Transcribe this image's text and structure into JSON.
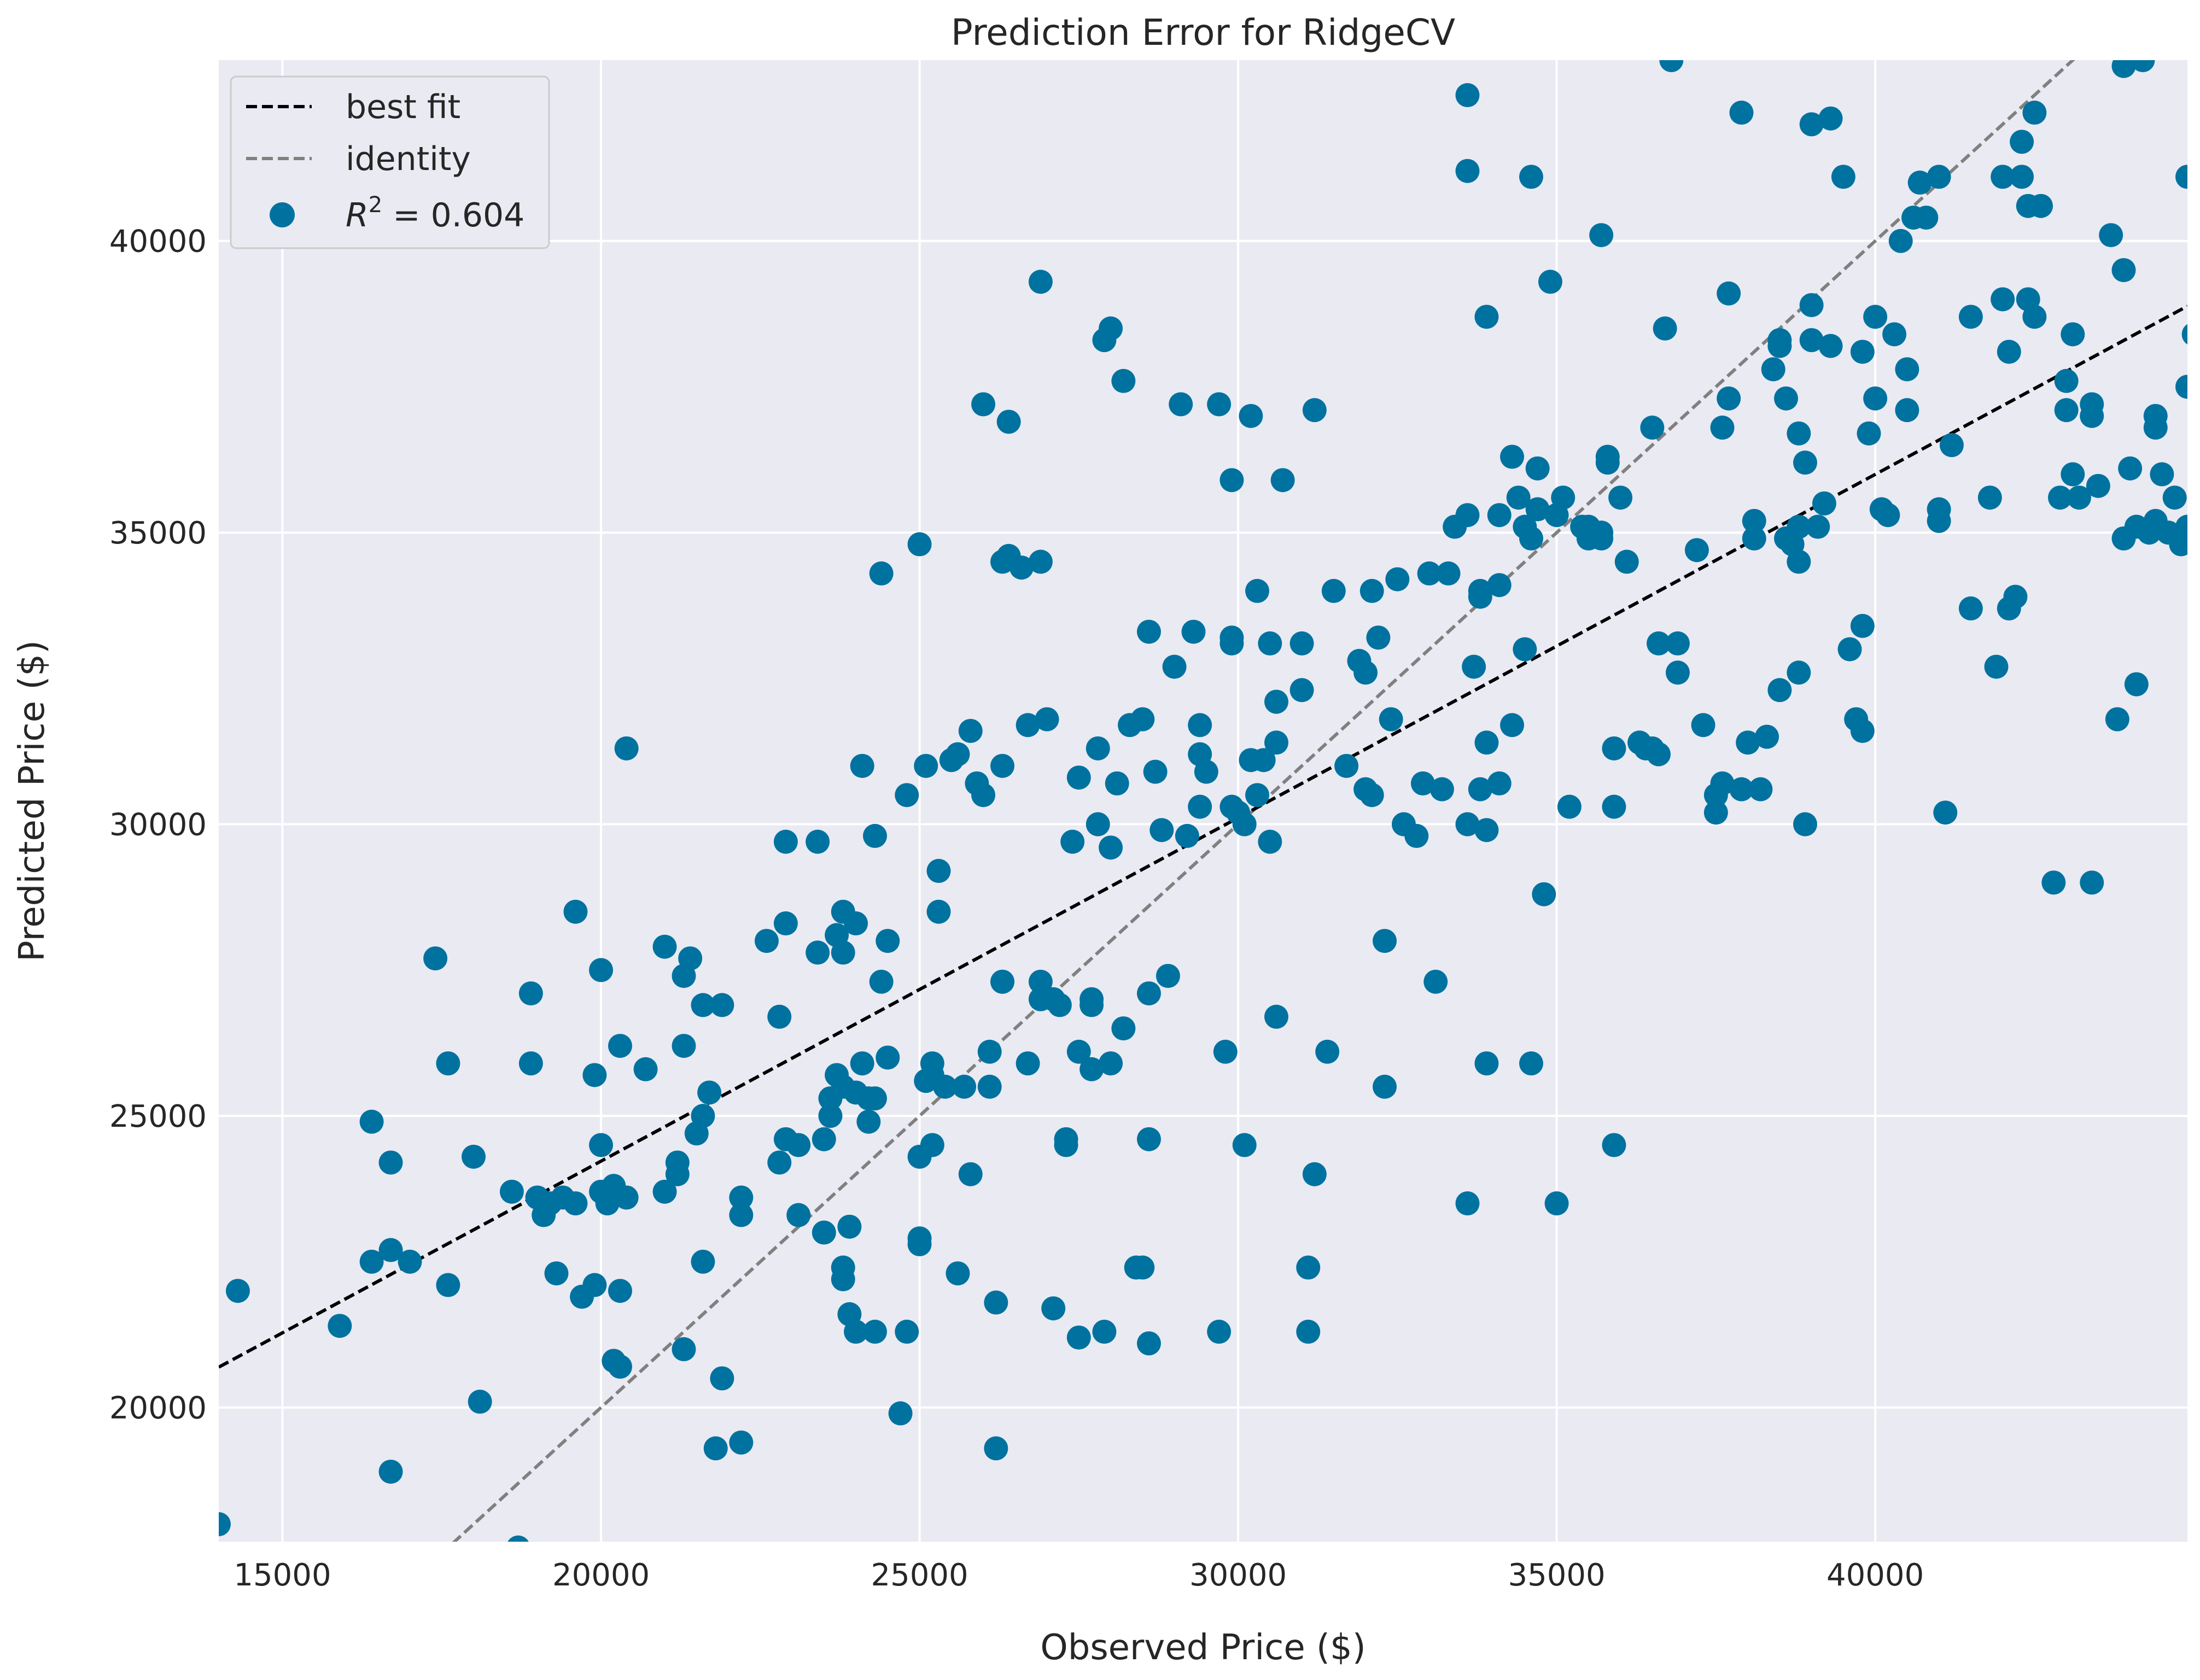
{
  "chart_data": {
    "type": "scatter",
    "title": "Prediction Error for RidgeCV",
    "xlabel": "Observed Price ($)",
    "ylabel": "Predicted Price ($)",
    "xlim": [
      14000,
      44900
    ],
    "ylim": [
      17700,
      43100
    ],
    "xticks": [
      15000,
      20000,
      25000,
      30000,
      35000,
      40000
    ],
    "yticks": [
      20000,
      25000,
      30000,
      35000,
      40000
    ],
    "grid": true,
    "legend_position": "top-left",
    "colors": {
      "points": "#0072a0",
      "best_fit": "#000000",
      "identity": "#808080",
      "plot_background": "#eaeaf2",
      "grid": "#ffffff"
    },
    "legend": {
      "best_fit": "best fit",
      "identity": "identity",
      "r2_symbol": "R",
      "r2_exp": "2",
      "r2_value": " = 0.604"
    },
    "lines": {
      "best_fit": {
        "slope": 0.5887,
        "intercept": 12450
      },
      "identity": {
        "slope": 1,
        "intercept": 0
      }
    },
    "points": [
      [
        14000,
        18000
      ],
      [
        14300,
        22000
      ],
      [
        15900,
        21400
      ],
      [
        16400,
        24900
      ],
      [
        16400,
        22500
      ],
      [
        16700,
        24200
      ],
      [
        16700,
        22700
      ],
      [
        16700,
        18900
      ],
      [
        17000,
        22500
      ],
      [
        17400,
        27700
      ],
      [
        17600,
        25900
      ],
      [
        17600,
        22100
      ],
      [
        18000,
        24300
      ],
      [
        18100,
        20100
      ],
      [
        18600,
        23700
      ],
      [
        18700,
        17600
      ],
      [
        18900,
        27100
      ],
      [
        18900,
        25900
      ],
      [
        19000,
        23600
      ],
      [
        19100,
        23300
      ],
      [
        19200,
        23500
      ],
      [
        19300,
        22300
      ],
      [
        19400,
        23600
      ],
      [
        19600,
        28500
      ],
      [
        19600,
        23500
      ],
      [
        19700,
        21900
      ],
      [
        19900,
        22100
      ],
      [
        19900,
        25700
      ],
      [
        20000,
        27500
      ],
      [
        20000,
        23700
      ],
      [
        20000,
        24500
      ],
      [
        20100,
        23500
      ],
      [
        20200,
        23800
      ],
      [
        20200,
        20800
      ],
      [
        20300,
        26200
      ],
      [
        20300,
        22000
      ],
      [
        20300,
        20700
      ],
      [
        20400,
        31300
      ],
      [
        20400,
        23600
      ],
      [
        20700,
        25800
      ],
      [
        21000,
        27900
      ],
      [
        21000,
        23700
      ],
      [
        21200,
        24200
      ],
      [
        21200,
        24000
      ],
      [
        21300,
        26200
      ],
      [
        21300,
        27400
      ],
      [
        21300,
        21000
      ],
      [
        21400,
        27700
      ],
      [
        21500,
        24700
      ],
      [
        21600,
        25000
      ],
      [
        21600,
        22500
      ],
      [
        21600,
        26900
      ],
      [
        21700,
        25400
      ],
      [
        21800,
        19300
      ],
      [
        21900,
        26900
      ],
      [
        21900,
        20500
      ],
      [
        22200,
        19400
      ],
      [
        22200,
        23600
      ],
      [
        22200,
        23300
      ],
      [
        22600,
        28000
      ],
      [
        22800,
        26700
      ],
      [
        22800,
        24200
      ],
      [
        22900,
        28300
      ],
      [
        22900,
        29700
      ],
      [
        22900,
        24600
      ],
      [
        23100,
        24500
      ],
      [
        23100,
        23300
      ],
      [
        23400,
        29700
      ],
      [
        23400,
        27800
      ],
      [
        23500,
        24600
      ],
      [
        23500,
        23000
      ],
      [
        23600,
        25000
      ],
      [
        23600,
        25300
      ],
      [
        23700,
        28100
      ],
      [
        23700,
        25700
      ],
      [
        23800,
        22400
      ],
      [
        23800,
        22200
      ],
      [
        23800,
        28500
      ],
      [
        23800,
        27800
      ],
      [
        23800,
        25500
      ],
      [
        23900,
        23100
      ],
      [
        23900,
        21600
      ],
      [
        24000,
        21300
      ],
      [
        24000,
        28300
      ],
      [
        24000,
        25400
      ],
      [
        24100,
        31000
      ],
      [
        24100,
        25900
      ],
      [
        24200,
        25300
      ],
      [
        24200,
        24900
      ],
      [
        24300,
        29800
      ],
      [
        24300,
        21300
      ],
      [
        24300,
        25300
      ],
      [
        24400,
        34300
      ],
      [
        24400,
        27300
      ],
      [
        24500,
        26000
      ],
      [
        24500,
        28000
      ],
      [
        24700,
        19900
      ],
      [
        24800,
        30500
      ],
      [
        24800,
        21300
      ],
      [
        25000,
        34800
      ],
      [
        25000,
        24300
      ],
      [
        25000,
        22900
      ],
      [
        25000,
        22800
      ],
      [
        25100,
        31000
      ],
      [
        25100,
        25600
      ],
      [
        25200,
        25900
      ],
      [
        25200,
        25700
      ],
      [
        25200,
        24500
      ],
      [
        25300,
        29200
      ],
      [
        25300,
        28500
      ],
      [
        25400,
        25500
      ],
      [
        25500,
        31100
      ],
      [
        25600,
        31200
      ],
      [
        25600,
        22300
      ],
      [
        25700,
        25500
      ],
      [
        25800,
        24000
      ],
      [
        25800,
        31600
      ],
      [
        25900,
        30700
      ],
      [
        26000,
        37200
      ],
      [
        26000,
        30500
      ],
      [
        26100,
        26100
      ],
      [
        26100,
        25500
      ],
      [
        26200,
        19300
      ],
      [
        26200,
        21800
      ],
      [
        26300,
        27300
      ],
      [
        26300,
        31000
      ],
      [
        26300,
        27300
      ],
      [
        26300,
        34500
      ],
      [
        26400,
        36900
      ],
      [
        26400,
        34600
      ],
      [
        26600,
        34400
      ],
      [
        26700,
        25900
      ],
      [
        26700,
        31700
      ],
      [
        26900,
        27300
      ],
      [
        26900,
        27000
      ],
      [
        26900,
        34500
      ],
      [
        26900,
        39300
      ],
      [
        27000,
        31800
      ],
      [
        27100,
        27000
      ],
      [
        27100,
        21700
      ],
      [
        27200,
        26900
      ],
      [
        27300,
        24600
      ],
      [
        27300,
        24500
      ],
      [
        27400,
        29700
      ],
      [
        27500,
        30800
      ],
      [
        27500,
        26100
      ],
      [
        27500,
        21200
      ],
      [
        27700,
        25800
      ],
      [
        27700,
        26900
      ],
      [
        27700,
        27000
      ],
      [
        27800,
        31300
      ],
      [
        27800,
        30000
      ],
      [
        27900,
        21300
      ],
      [
        27900,
        38300
      ],
      [
        28000,
        38500
      ],
      [
        28000,
        29600
      ],
      [
        28000,
        25900
      ],
      [
        28100,
        30700
      ],
      [
        28200,
        37600
      ],
      [
        28200,
        26500
      ],
      [
        28300,
        31700
      ],
      [
        28400,
        22400
      ],
      [
        28500,
        22400
      ],
      [
        28500,
        31800
      ],
      [
        28600,
        33300
      ],
      [
        28600,
        27100
      ],
      [
        28600,
        21100
      ],
      [
        28600,
        24600
      ],
      [
        28700,
        30900
      ],
      [
        28800,
        29900
      ],
      [
        28900,
        27400
      ],
      [
        29000,
        32700
      ],
      [
        29100,
        37200
      ],
      [
        29200,
        29800
      ],
      [
        29300,
        33300
      ],
      [
        29400,
        31200
      ],
      [
        29400,
        30300
      ],
      [
        29400,
        31700
      ],
      [
        29500,
        30900
      ],
      [
        29700,
        21300
      ],
      [
        29700,
        37200
      ],
      [
        29800,
        26100
      ],
      [
        29900,
        35900
      ],
      [
        29900,
        33200
      ],
      [
        29900,
        30300
      ],
      [
        29900,
        33100
      ],
      [
        30000,
        30200
      ],
      [
        30100,
        30000
      ],
      [
        30100,
        24500
      ],
      [
        30200,
        37000
      ],
      [
        30200,
        31100
      ],
      [
        30300,
        30500
      ],
      [
        30300,
        34000
      ],
      [
        30400,
        31100
      ],
      [
        30500,
        29700
      ],
      [
        30500,
        33100
      ],
      [
        30600,
        31400
      ],
      [
        30600,
        32100
      ],
      [
        30600,
        26700
      ],
      [
        30700,
        35900
      ],
      [
        31000,
        32300
      ],
      [
        31000,
        33100
      ],
      [
        31100,
        21300
      ],
      [
        31100,
        22400
      ],
      [
        31200,
        24000
      ],
      [
        31200,
        37100
      ],
      [
        31400,
        26100
      ],
      [
        31500,
        34000
      ],
      [
        31700,
        31000
      ],
      [
        31900,
        32800
      ],
      [
        32000,
        32600
      ],
      [
        32000,
        30600
      ],
      [
        32100,
        30500
      ],
      [
        32100,
        34000
      ],
      [
        32200,
        33200
      ],
      [
        32300,
        28000
      ],
      [
        32300,
        25500
      ],
      [
        32400,
        31800
      ],
      [
        32500,
        34200
      ],
      [
        32600,
        30000
      ],
      [
        32800,
        29800
      ],
      [
        32900,
        30700
      ],
      [
        33000,
        34300
      ],
      [
        33100,
        27300
      ],
      [
        33200,
        30600
      ],
      [
        33300,
        34300
      ],
      [
        33400,
        35100
      ],
      [
        33600,
        42500
      ],
      [
        33600,
        41200
      ],
      [
        33600,
        35300
      ],
      [
        33600,
        30000
      ],
      [
        33600,
        23500
      ],
      [
        33700,
        32700
      ],
      [
        33800,
        30600
      ],
      [
        33800,
        33900
      ],
      [
        33800,
        34000
      ],
      [
        33900,
        31400
      ],
      [
        33900,
        25900
      ],
      [
        33900,
        29900
      ],
      [
        33900,
        38700
      ],
      [
        34100,
        34100
      ],
      [
        34100,
        35300
      ],
      [
        34100,
        30700
      ],
      [
        34300,
        36300
      ],
      [
        34300,
        31700
      ],
      [
        34400,
        35600
      ],
      [
        34500,
        35100
      ],
      [
        34500,
        33000
      ],
      [
        34600,
        34900
      ],
      [
        34600,
        41100
      ],
      [
        34600,
        25900
      ],
      [
        34700,
        36100
      ],
      [
        34700,
        35400
      ],
      [
        34800,
        28800
      ],
      [
        34900,
        39300
      ],
      [
        35000,
        23500
      ],
      [
        35000,
        35300
      ],
      [
        35100,
        35600
      ],
      [
        35200,
        30300
      ],
      [
        35400,
        35100
      ],
      [
        35500,
        35100
      ],
      [
        35500,
        34900
      ],
      [
        35700,
        40100
      ],
      [
        35700,
        35000
      ],
      [
        35700,
        34900
      ],
      [
        35800,
        36300
      ],
      [
        35800,
        36200
      ],
      [
        35900,
        30300
      ],
      [
        35900,
        31300
      ],
      [
        35900,
        24500
      ],
      [
        36000,
        35600
      ],
      [
        36100,
        34500
      ],
      [
        36300,
        31400
      ],
      [
        36400,
        31300
      ],
      [
        36500,
        31300
      ],
      [
        36500,
        36800
      ],
      [
        36600,
        31200
      ],
      [
        36600,
        33100
      ],
      [
        36700,
        38500
      ],
      [
        36800,
        43100
      ],
      [
        36900,
        33100
      ],
      [
        36900,
        32600
      ],
      [
        37200,
        34700
      ],
      [
        37300,
        31700
      ],
      [
        37500,
        30200
      ],
      [
        37500,
        30500
      ],
      [
        37600,
        30700
      ],
      [
        37600,
        36800
      ],
      [
        37700,
        37300
      ],
      [
        37700,
        39100
      ],
      [
        37900,
        42200
      ],
      [
        37900,
        30600
      ],
      [
        38000,
        31400
      ],
      [
        38100,
        35200
      ],
      [
        38100,
        34900
      ],
      [
        38200,
        30600
      ],
      [
        38300,
        31500
      ],
      [
        38400,
        37800
      ],
      [
        38500,
        38200
      ],
      [
        38500,
        38300
      ],
      [
        38500,
        32300
      ],
      [
        38600,
        34900
      ],
      [
        38600,
        37300
      ],
      [
        38700,
        34800
      ],
      [
        38800,
        36700
      ],
      [
        38800,
        35100
      ],
      [
        38800,
        34500
      ],
      [
        38800,
        32600
      ],
      [
        38900,
        36200
      ],
      [
        38900,
        30000
      ],
      [
        39000,
        38900
      ],
      [
        39000,
        38300
      ],
      [
        39000,
        42000
      ],
      [
        39100,
        35100
      ],
      [
        39200,
        35500
      ],
      [
        39300,
        42100
      ],
      [
        39300,
        38200
      ],
      [
        39500,
        41100
      ],
      [
        39600,
        33000
      ],
      [
        39700,
        31800
      ],
      [
        39800,
        33400
      ],
      [
        39800,
        31600
      ],
      [
        39800,
        38100
      ],
      [
        39900,
        36700
      ],
      [
        40000,
        38700
      ],
      [
        40000,
        37300
      ],
      [
        40100,
        35400
      ],
      [
        40200,
        35300
      ],
      [
        40300,
        38400
      ],
      [
        40400,
        40000
      ],
      [
        40500,
        37800
      ],
      [
        40500,
        37100
      ],
      [
        40600,
        40400
      ],
      [
        40700,
        41000
      ],
      [
        40800,
        40400
      ],
      [
        41000,
        41100
      ],
      [
        41000,
        35200
      ],
      [
        41000,
        35400
      ],
      [
        41100,
        30200
      ],
      [
        41200,
        36500
      ],
      [
        41500,
        38700
      ],
      [
        41500,
        33700
      ],
      [
        41800,
        35600
      ],
      [
        41900,
        32700
      ],
      [
        42000,
        39000
      ],
      [
        42000,
        41100
      ],
      [
        42100,
        38100
      ],
      [
        42100,
        33700
      ],
      [
        42200,
        33900
      ],
      [
        42300,
        41700
      ],
      [
        42300,
        41100
      ],
      [
        42400,
        40600
      ],
      [
        42400,
        39000
      ],
      [
        42500,
        38700
      ],
      [
        42500,
        42200
      ],
      [
        42600,
        40600
      ],
      [
        42800,
        29000
      ],
      [
        42900,
        35600
      ],
      [
        43000,
        37600
      ],
      [
        43000,
        37100
      ],
      [
        43100,
        38400
      ],
      [
        43100,
        36000
      ],
      [
        43200,
        35600
      ],
      [
        43400,
        37200
      ],
      [
        43400,
        37000
      ],
      [
        43400,
        29000
      ],
      [
        43500,
        35800
      ],
      [
        43700,
        40100
      ],
      [
        43800,
        31800
      ],
      [
        43900,
        43000
      ],
      [
        43900,
        34900
      ],
      [
        43900,
        39500
      ],
      [
        44000,
        36100
      ],
      [
        44100,
        35100
      ],
      [
        44100,
        32400
      ],
      [
        44200,
        43100
      ],
      [
        44300,
        35000
      ],
      [
        44400,
        37000
      ],
      [
        44400,
        36800
      ],
      [
        44400,
        35200
      ],
      [
        44500,
        36000
      ],
      [
        44600,
        35000
      ],
      [
        44700,
        35600
      ],
      [
        44800,
        34800
      ],
      [
        44900,
        37500
      ],
      [
        44900,
        41100
      ],
      [
        44900,
        35100
      ],
      [
        45000,
        38400
      ]
    ]
  }
}
